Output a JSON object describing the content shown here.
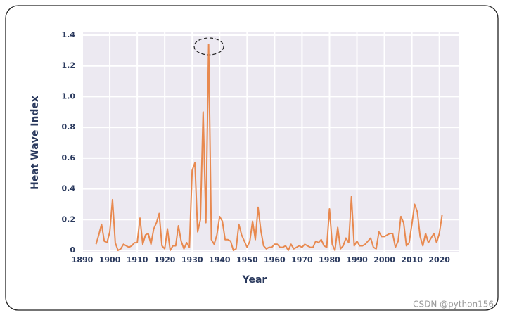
{
  "chart_data": {
    "type": "line",
    "x_label": "Year",
    "y_label": "Heat Wave Index",
    "x": [
      1895,
      1896,
      1897,
      1898,
      1899,
      1900,
      1901,
      1902,
      1903,
      1904,
      1905,
      1906,
      1907,
      1908,
      1909,
      1910,
      1911,
      1912,
      1913,
      1914,
      1915,
      1916,
      1917,
      1918,
      1919,
      1920,
      1921,
      1922,
      1923,
      1924,
      1925,
      1926,
      1927,
      1928,
      1929,
      1930,
      1931,
      1932,
      1933,
      1934,
      1935,
      1936,
      1937,
      1938,
      1939,
      1940,
      1941,
      1942,
      1943,
      1944,
      1945,
      1946,
      1947,
      1948,
      1949,
      1950,
      1951,
      1952,
      1953,
      1954,
      1955,
      1956,
      1957,
      1958,
      1959,
      1960,
      1961,
      1962,
      1963,
      1964,
      1965,
      1966,
      1967,
      1968,
      1969,
      1970,
      1971,
      1972,
      1973,
      1974,
      1975,
      1976,
      1977,
      1978,
      1979,
      1980,
      1981,
      1982,
      1983,
      1984,
      1985,
      1986,
      1987,
      1988,
      1989,
      1990,
      1991,
      1992,
      1993,
      1994,
      1995,
      1996,
      1997,
      1998,
      1999,
      2000,
      2001,
      2002,
      2003,
      2004,
      2005,
      2006,
      2007,
      2008,
      2009,
      2010,
      2011,
      2012,
      2013,
      2014,
      2015,
      2016,
      2017,
      2018,
      2019,
      2020,
      2021
    ],
    "values": [
      0.04,
      0.1,
      0.17,
      0.06,
      0.05,
      0.12,
      0.33,
      0.05,
      0.0,
      0.01,
      0.04,
      0.03,
      0.02,
      0.03,
      0.05,
      0.05,
      0.21,
      0.04,
      0.1,
      0.11,
      0.04,
      0.14,
      0.18,
      0.24,
      0.03,
      0.01,
      0.14,
      0.0,
      0.03,
      0.03,
      0.16,
      0.06,
      0.01,
      0.05,
      0.02,
      0.52,
      0.57,
      0.12,
      0.2,
      0.9,
      0.18,
      1.34,
      0.07,
      0.04,
      0.1,
      0.22,
      0.19,
      0.07,
      0.07,
      0.06,
      0.0,
      0.01,
      0.17,
      0.1,
      0.06,
      0.02,
      0.06,
      0.19,
      0.07,
      0.28,
      0.13,
      0.03,
      0.01,
      0.02,
      0.02,
      0.04,
      0.04,
      0.02,
      0.02,
      0.03,
      0.0,
      0.04,
      0.01,
      0.02,
      0.03,
      0.02,
      0.04,
      0.03,
      0.02,
      0.02,
      0.06,
      0.05,
      0.07,
      0.03,
      0.02,
      0.27,
      0.04,
      0.0,
      0.15,
      0.01,
      0.03,
      0.08,
      0.05,
      0.35,
      0.03,
      0.06,
      0.03,
      0.03,
      0.04,
      0.06,
      0.08,
      0.02,
      0.01,
      0.12,
      0.09,
      0.09,
      0.1,
      0.11,
      0.11,
      0.02,
      0.06,
      0.22,
      0.18,
      0.03,
      0.05,
      0.17,
      0.3,
      0.25,
      0.09,
      0.03,
      0.11,
      0.05,
      0.08,
      0.11,
      0.05,
      0.11,
      0.23
    ],
    "color": "#e8894f",
    "xlim": [
      1890,
      2027
    ],
    "ylim": [
      0,
      1.4
    ],
    "xticks": [
      1890,
      1900,
      1910,
      1920,
      1930,
      1940,
      1950,
      1960,
      1970,
      1980,
      1990,
      2000,
      2010,
      2020
    ],
    "yticks": [
      0,
      0.2,
      0.4,
      0.6,
      0.8,
      {
        "value": 1,
        "label": "1.0"
      },
      1.2,
      1.4
    ],
    "grid": true
  },
  "watermark": "CSDN @python156"
}
